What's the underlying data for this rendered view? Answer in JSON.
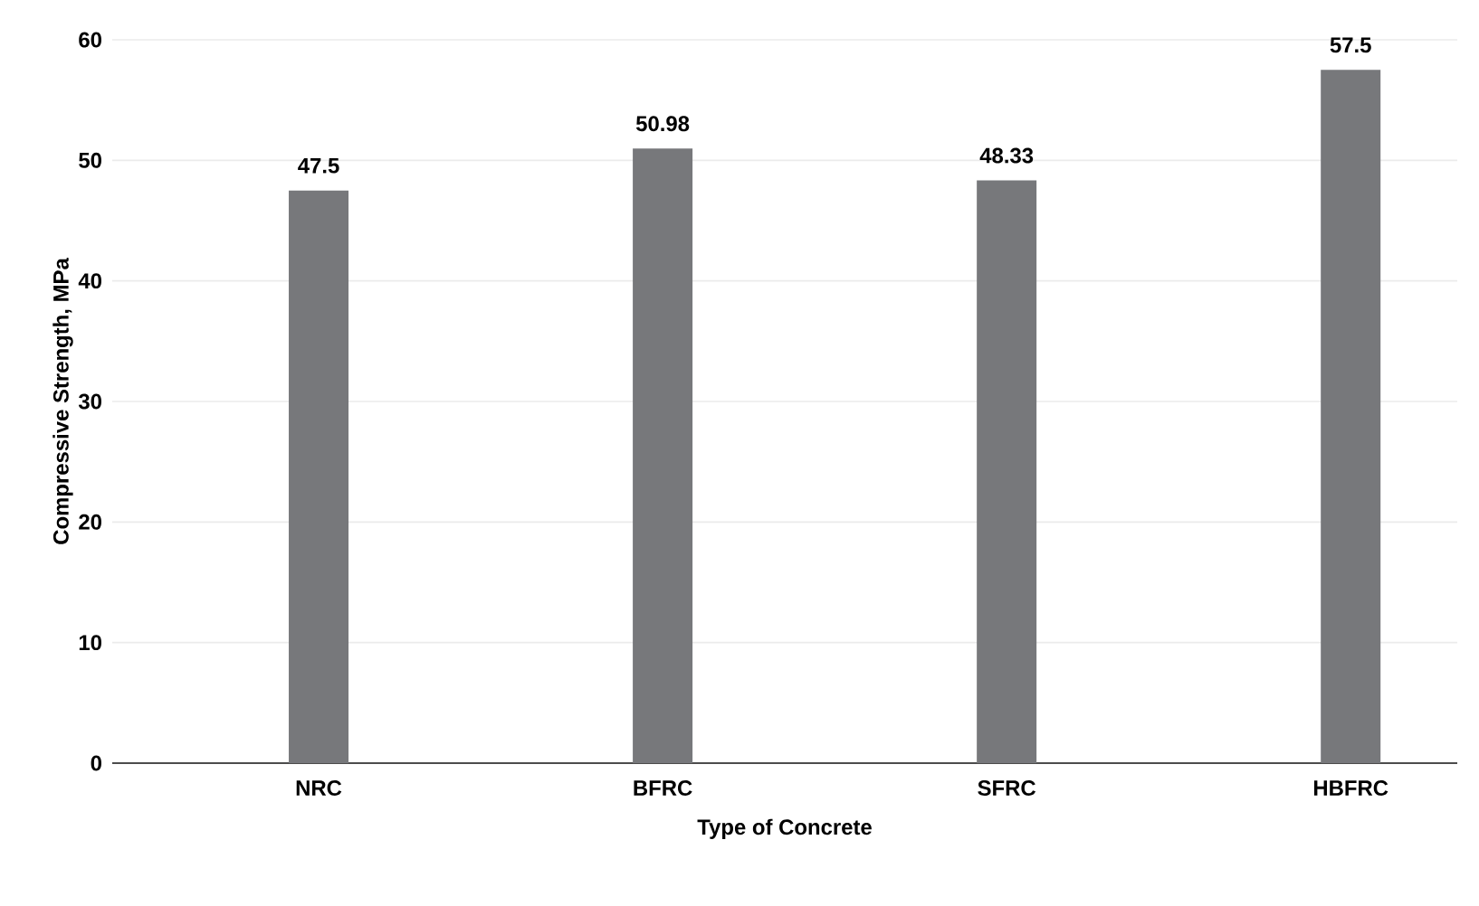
{
  "chart_data": {
    "type": "bar",
    "xlabel": "Type of Concrete",
    "ylabel": "Compressive Strength, MPa",
    "categories": [
      "NRC",
      "BFRC",
      "SFRC",
      "HBFRC"
    ],
    "values": [
      47.5,
      50.98,
      48.33,
      57.5
    ],
    "color": "#77787b",
    "ylim": [
      0,
      60
    ],
    "yticks": [
      0,
      10,
      20,
      30,
      40,
      50,
      60
    ],
    "grid": "y",
    "data_labels": true
  }
}
